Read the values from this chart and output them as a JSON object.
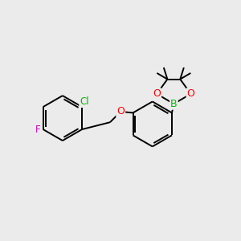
{
  "background_color": "#ebebeb",
  "bond_color": "#000000",
  "atom_colors": {
    "F": "#cc00cc",
    "Cl": "#00bb00",
    "O": "#ff0000",
    "B": "#00bb00",
    "C": "#000000"
  },
  "figsize": [
    3.0,
    3.0
  ],
  "dpi": 100,
  "lw": 1.4
}
